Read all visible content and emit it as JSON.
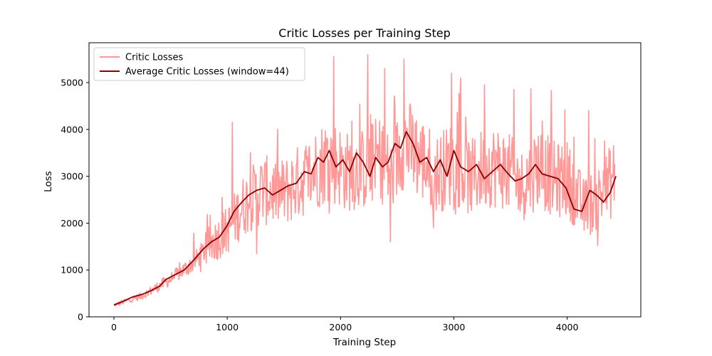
{
  "chart_data": {
    "type": "line",
    "title": "Critic Losses per Training Step",
    "xlabel": "Training Step",
    "ylabel": "Loss",
    "xlim": [
      -220,
      4650
    ],
    "ylim": [
      0,
      5850
    ],
    "xticks": [
      0,
      1000,
      2000,
      3000,
      4000
    ],
    "yticks": [
      0,
      1000,
      2000,
      3000,
      4000,
      5000
    ],
    "grid": false,
    "legend_position": "top-left",
    "n_steps": 4420,
    "series": [
      {
        "name": "Critic Losses",
        "color": "#ff9896",
        "style": "noisy",
        "trend_x": [
          0,
          250,
          500,
          700,
          850,
          1000,
          1150,
          1300,
          1500,
          1700,
          1900,
          2050,
          2200,
          2350,
          2450,
          2550,
          2700,
          2850,
          3000,
          3150,
          3300,
          3450,
          3600,
          3750,
          3900,
          4000,
          4150,
          4300,
          4420
        ],
        "trend_y": [
          250,
          450,
          800,
          1150,
          1550,
          1850,
          2400,
          2700,
          2650,
          3000,
          3400,
          3100,
          3150,
          3400,
          3000,
          3750,
          3400,
          3050,
          3300,
          2950,
          3250,
          3150,
          2800,
          3250,
          2900,
          2950,
          2300,
          2600,
          3000
        ],
        "spikes": [
          [
            1046,
            4150
          ],
          [
            1940,
            5550
          ],
          [
            2240,
            5600
          ],
          [
            2390,
            5300
          ],
          [
            2560,
            5500
          ],
          [
            2980,
            5200
          ],
          [
            3060,
            5100
          ],
          [
            3270,
            4950
          ],
          [
            3530,
            4850
          ],
          [
            3680,
            4870
          ],
          [
            3860,
            4830
          ],
          [
            3980,
            4420
          ],
          [
            4190,
            4400
          ],
          [
            4330,
            3750
          ],
          [
            2440,
            1600
          ],
          [
            4270,
            1520
          ],
          [
            1260,
            1350
          ],
          [
            2820,
            1900
          ]
        ]
      },
      {
        "name": "Average Critic Losses (window=44)",
        "color": "#8b0000",
        "style": "smooth",
        "x": [
          0,
          80,
          160,
          250,
          330,
          400,
          460,
          540,
          620,
          700,
          790,
          860,
          930,
          1000,
          1060,
          1130,
          1190,
          1260,
          1330,
          1400,
          1470,
          1540,
          1610,
          1680,
          1740,
          1800,
          1850,
          1900,
          1960,
          2020,
          2080,
          2140,
          2200,
          2260,
          2310,
          2370,
          2420,
          2480,
          2530,
          2580,
          2640,
          2700,
          2760,
          2820,
          2880,
          2940,
          3000,
          3060,
          3130,
          3200,
          3270,
          3340,
          3410,
          3480,
          3540,
          3600,
          3660,
          3720,
          3780,
          3850,
          3920,
          3990,
          4060,
          4130,
          4200,
          4260,
          4320,
          4380,
          4430
        ],
        "y": [
          250,
          330,
          420,
          480,
          560,
          650,
          800,
          900,
          1000,
          1200,
          1450,
          1600,
          1700,
          1950,
          2250,
          2450,
          2600,
          2700,
          2750,
          2600,
          2700,
          2800,
          2850,
          3100,
          3050,
          3400,
          3300,
          3550,
          3200,
          3350,
          3100,
          3500,
          3300,
          3000,
          3400,
          3200,
          3300,
          3700,
          3600,
          3950,
          3700,
          3300,
          3400,
          3100,
          3350,
          3000,
          3550,
          3200,
          3100,
          3250,
          2950,
          3100,
          3250,
          3050,
          2900,
          2950,
          3050,
          3250,
          3050,
          3000,
          2950,
          2750,
          2300,
          2250,
          2700,
          2600,
          2450,
          2650,
          3000
        ]
      }
    ]
  }
}
